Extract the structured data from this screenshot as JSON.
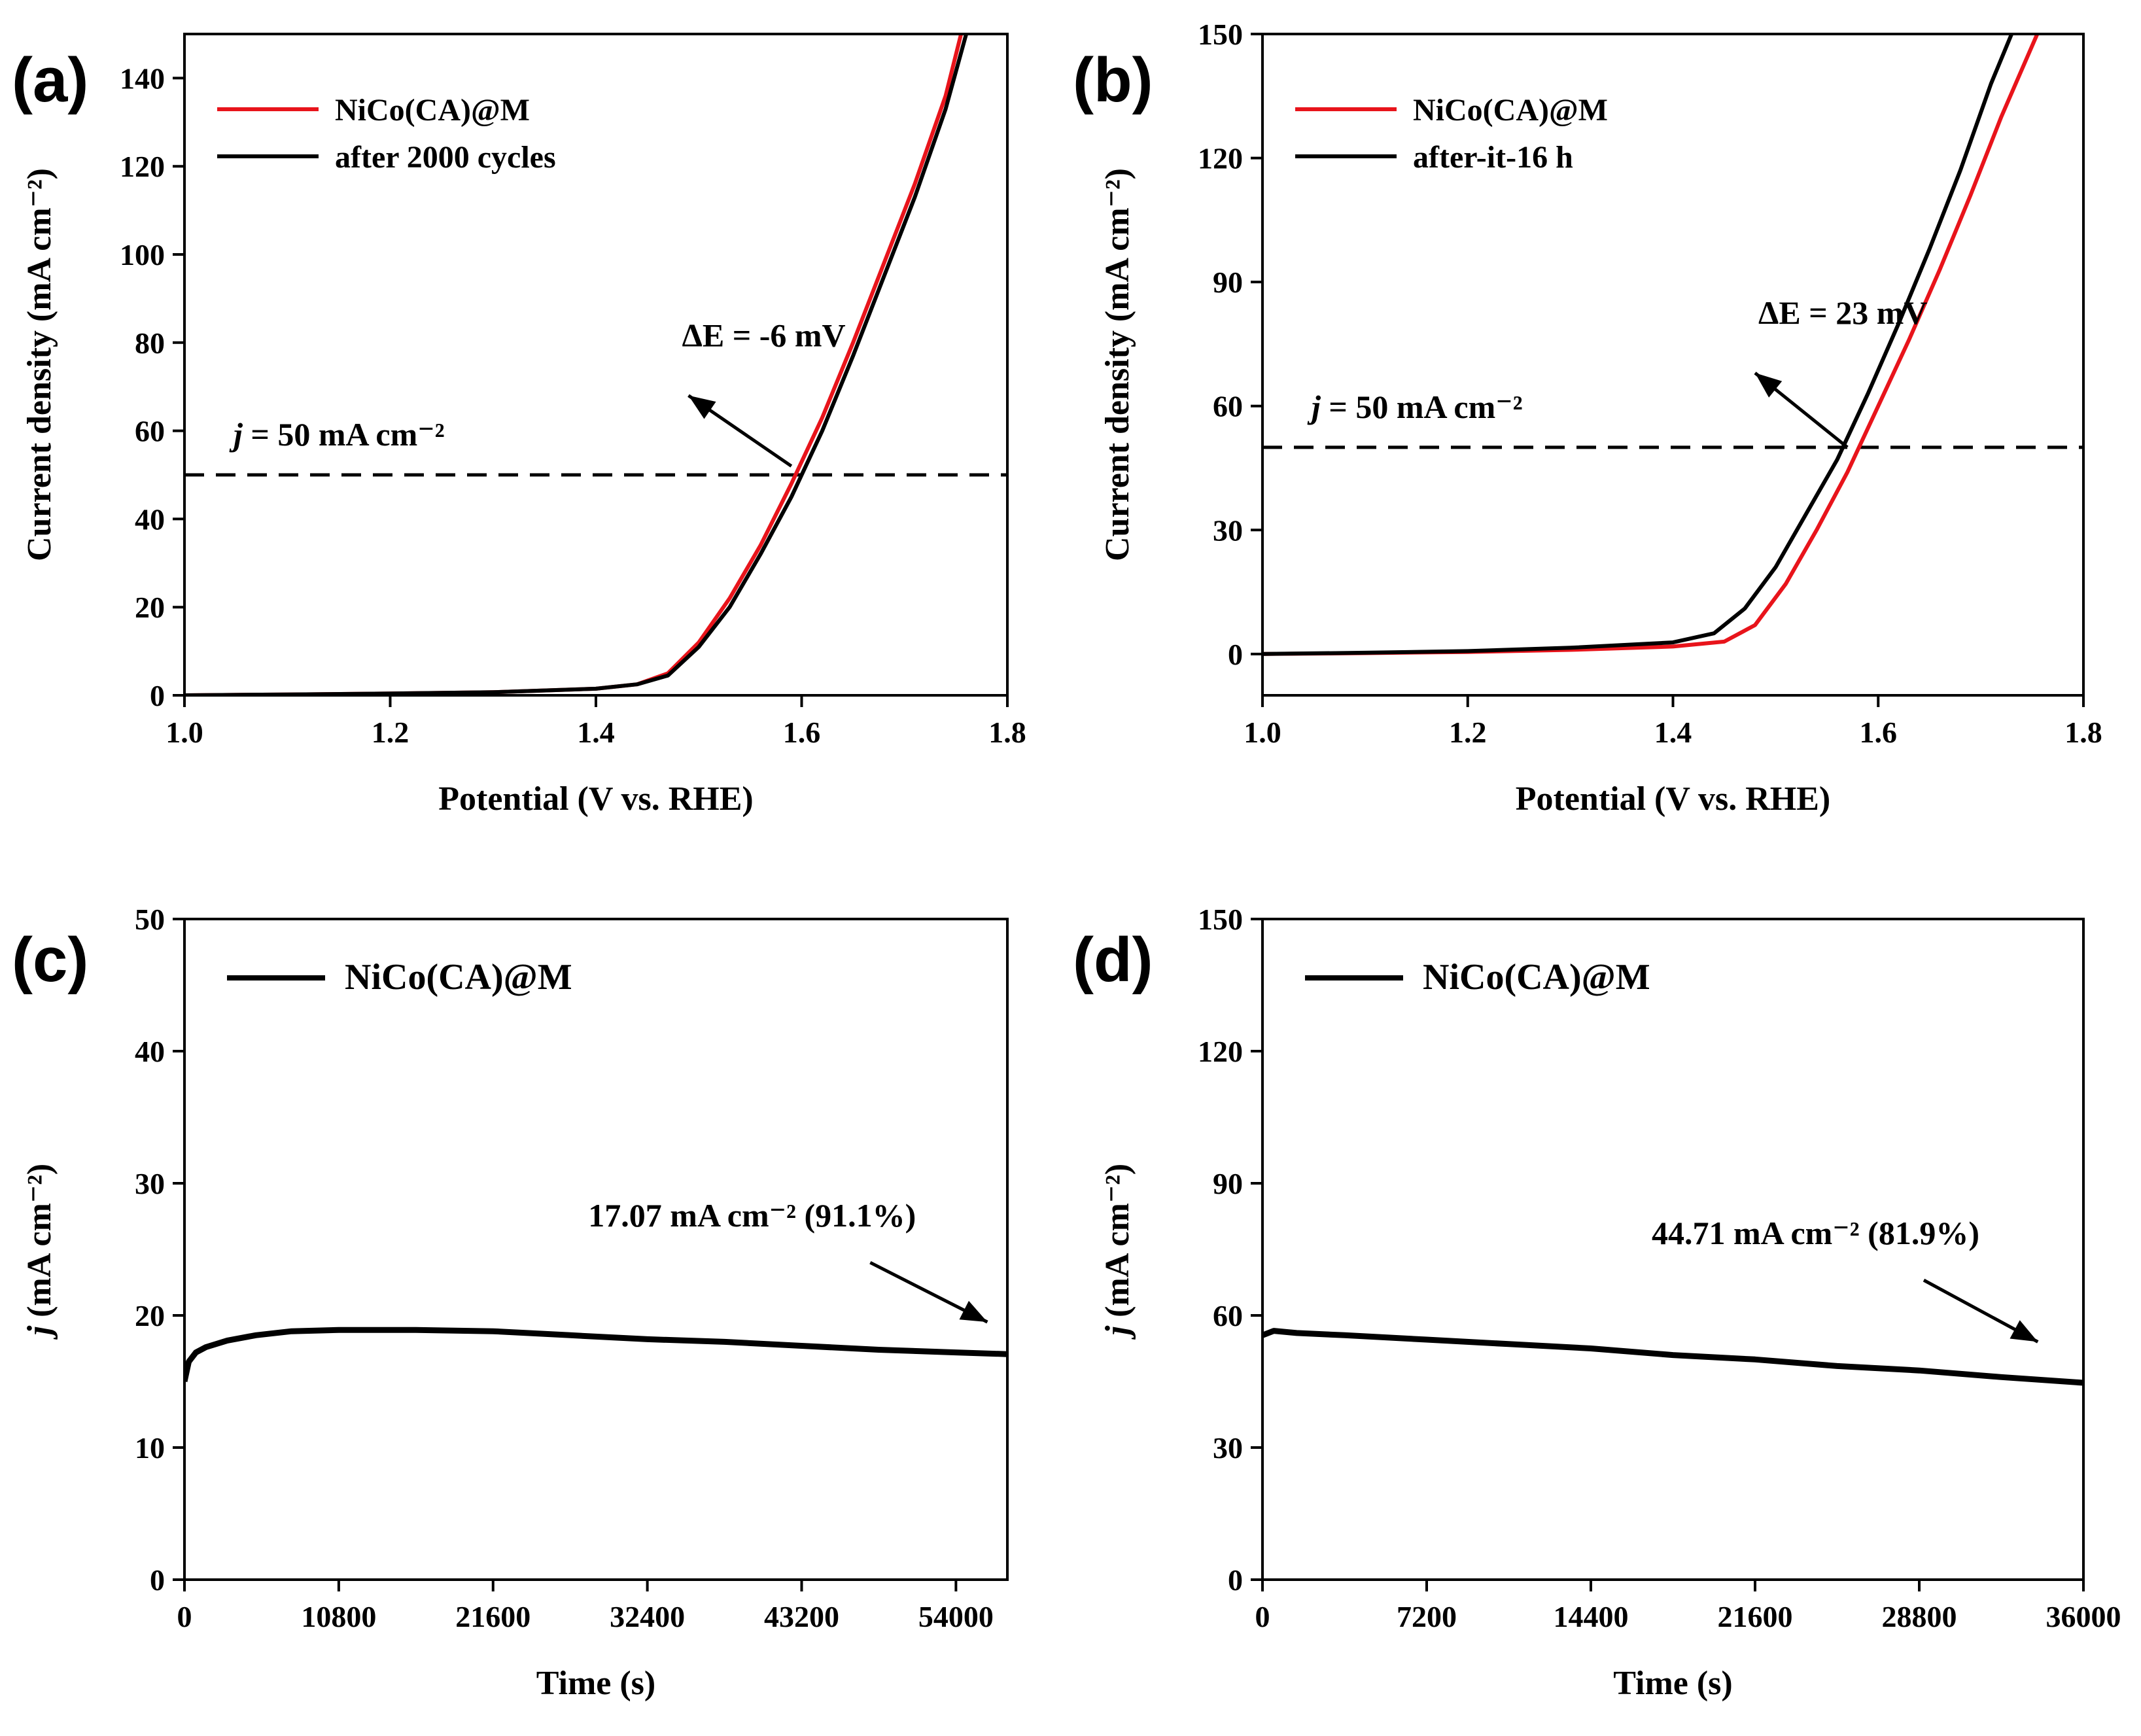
{
  "chart_data": [
    {
      "panel": "(a)",
      "type": "line",
      "xlabel": "Potential (V vs. RHE)",
      "ylabel": "Current density (mA cm⁻²)",
      "xlim": [
        1.0,
        1.8
      ],
      "ylim": [
        0,
        150
      ],
      "xticks": [
        1.0,
        1.2,
        1.4,
        1.6,
        1.8
      ],
      "xtick_labels": [
        "1.0",
        "1.2",
        "1.4",
        "1.6",
        "1.8"
      ],
      "yticks": [
        0,
        20,
        40,
        60,
        80,
        100,
        120,
        140
      ],
      "ytick_labels": [
        "0",
        "20",
        "40",
        "60",
        "80",
        "100",
        "120",
        "140"
      ],
      "legend_position": "top-left",
      "reference_line": {
        "y": 50,
        "label_prefix": "j",
        "label_suffix": " = 50 mA cm⁻²"
      },
      "annotation": {
        "text": "ΔE = -6 mV",
        "arrow_from": [
          1.59,
          52
        ],
        "arrow_to": [
          1.49,
          68
        ]
      },
      "series": [
        {
          "name": "NiCo(CA)@M",
          "color": "#e8141b",
          "x": [
            1.0,
            1.1,
            1.2,
            1.3,
            1.4,
            1.44,
            1.47,
            1.5,
            1.53,
            1.56,
            1.59,
            1.62,
            1.65,
            1.68,
            1.71,
            1.74,
            1.755
          ],
          "y": [
            0,
            0.2,
            0.4,
            0.7,
            1.5,
            2.5,
            5,
            12,
            22,
            34,
            48,
            63,
            80,
            98,
            116,
            136,
            150
          ]
        },
        {
          "name": "after 2000 cycles",
          "color": "#000000",
          "x": [
            1.0,
            1.1,
            1.2,
            1.3,
            1.4,
            1.44,
            1.47,
            1.5,
            1.53,
            1.56,
            1.59,
            1.62,
            1.65,
            1.68,
            1.71,
            1.74,
            1.76
          ],
          "y": [
            0,
            0.2,
            0.4,
            0.7,
            1.5,
            2.5,
            4.5,
            11,
            20,
            32,
            45,
            60,
            77,
            95,
            113,
            133,
            150
          ]
        }
      ]
    },
    {
      "panel": "(b)",
      "type": "line",
      "xlabel": "Potential (V vs. RHE)",
      "ylabel": "Current density (mA cm⁻²)",
      "xlim": [
        1.0,
        1.8
      ],
      "ylim": [
        -10,
        150
      ],
      "xticks": [
        1.0,
        1.2,
        1.4,
        1.6,
        1.8
      ],
      "xtick_labels": [
        "1.0",
        "1.2",
        "1.4",
        "1.6",
        "1.8"
      ],
      "yticks": [
        0,
        30,
        60,
        90,
        120,
        150
      ],
      "ytick_labels": [
        "0",
        "30",
        "60",
        "90",
        "120",
        "150"
      ],
      "legend_position": "top-left",
      "reference_line": {
        "y": 50,
        "label_prefix": "j",
        "label_suffix": " = 50 mA cm⁻²"
      },
      "annotation": {
        "text": "ΔE = 23 mV",
        "arrow_from": [
          1.57,
          50
        ],
        "arrow_to": [
          1.48,
          68
        ]
      },
      "series": [
        {
          "name": "NiCo(CA)@M",
          "color": "#e8141b",
          "x": [
            1.0,
            1.1,
            1.2,
            1.3,
            1.4,
            1.45,
            1.48,
            1.51,
            1.54,
            1.57,
            1.6,
            1.63,
            1.66,
            1.69,
            1.72,
            1.755
          ],
          "y": [
            0,
            0.2,
            0.5,
            1.0,
            1.8,
            3,
            7,
            17,
            30,
            44,
            60,
            76,
            93,
            111,
            130,
            150
          ]
        },
        {
          "name": "after-it-16 h",
          "color": "#000000",
          "x": [
            1.0,
            1.1,
            1.2,
            1.3,
            1.4,
            1.44,
            1.47,
            1.5,
            1.53,
            1.56,
            1.59,
            1.62,
            1.65,
            1.68,
            1.71,
            1.73
          ],
          "y": [
            0,
            0.3,
            0.7,
            1.5,
            2.8,
            5,
            11,
            21,
            34,
            47,
            63,
            80,
            98,
            117,
            138,
            150
          ]
        }
      ]
    },
    {
      "panel": "(c)",
      "type": "line",
      "xlabel": "Time (s)",
      "ylabel_prefix": "j",
      "ylabel_suffix": " (mA cm⁻²)",
      "xlim": [
        0,
        57600
      ],
      "ylim": [
        0,
        50
      ],
      "xticks": [
        0,
        10800,
        21600,
        32400,
        43200,
        54000
      ],
      "xtick_labels": [
        "0",
        "10800",
        "21600",
        "32400",
        "43200",
        "54000"
      ],
      "yticks": [
        0,
        10,
        20,
        30,
        40,
        50
      ],
      "ytick_labels": [
        "0",
        "10",
        "20",
        "30",
        "40",
        "50"
      ],
      "legend_position": "top-left",
      "annotation": {
        "text": "17.07 mA cm⁻² (91.1%)",
        "arrow_from": [
          48000,
          24
        ],
        "arrow_to": [
          56200,
          19.5
        ]
      },
      "series": [
        {
          "name": "NiCo(CA)@M",
          "color": "#000000",
          "x": [
            0,
            300,
            800,
            1500,
            3000,
            5000,
            7500,
            10800,
            16200,
            21600,
            27000,
            32400,
            37800,
            43200,
            48600,
            54000,
            57600
          ],
          "y": [
            15.0,
            16.5,
            17.2,
            17.6,
            18.1,
            18.5,
            18.8,
            18.9,
            18.9,
            18.8,
            18.5,
            18.2,
            18.0,
            17.7,
            17.4,
            17.2,
            17.07
          ]
        }
      ]
    },
    {
      "panel": "(d)",
      "type": "line",
      "xlabel": "Time (s)",
      "ylabel_prefix": "j",
      "ylabel_suffix": " (mA cm⁻²)",
      "xlim": [
        0,
        36000
      ],
      "ylim": [
        0,
        150
      ],
      "xticks": [
        0,
        7200,
        14400,
        21600,
        28800,
        36000
      ],
      "xtick_labels": [
        "0",
        "7200",
        "14400",
        "21600",
        "28800",
        "36000"
      ],
      "yticks": [
        0,
        30,
        60,
        90,
        120,
        150
      ],
      "ytick_labels": [
        "0",
        "30",
        "60",
        "90",
        "120",
        "150"
      ],
      "legend_position": "top-left",
      "annotation": {
        "text": "44.71 mA cm⁻² (81.9%)",
        "arrow_from": [
          29000,
          68
        ],
        "arrow_to": [
          34000,
          54
        ]
      },
      "series": [
        {
          "name": "NiCo(CA)@M",
          "color": "#000000",
          "x": [
            0,
            500,
            1500,
            3600,
            7200,
            10800,
            14400,
            18000,
            21600,
            25200,
            28800,
            32400,
            36000
          ],
          "y": [
            55.5,
            56.5,
            56.0,
            55.5,
            54.5,
            53.5,
            52.5,
            51.0,
            50.0,
            48.5,
            47.5,
            46.0,
            44.71
          ]
        }
      ]
    }
  ]
}
